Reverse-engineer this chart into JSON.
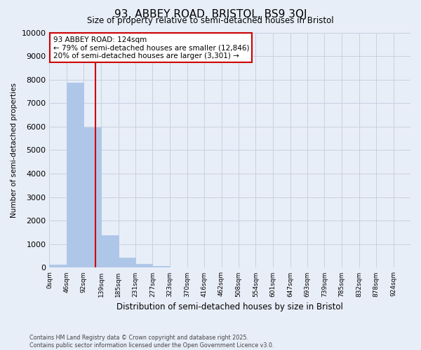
{
  "title": "93, ABBEY ROAD, BRISTOL, BS9 3QJ",
  "subtitle": "Size of property relative to semi-detached houses in Bristol",
  "xlabel": "Distribution of semi-detached houses by size in Bristol",
  "ylabel": "Number of semi-detached properties",
  "bin_labels": [
    "0sqm",
    "46sqm",
    "92sqm",
    "139sqm",
    "185sqm",
    "231sqm",
    "277sqm",
    "323sqm",
    "370sqm",
    "416sqm",
    "462sqm",
    "508sqm",
    "554sqm",
    "601sqm",
    "647sqm",
    "693sqm",
    "739sqm",
    "785sqm",
    "832sqm",
    "878sqm",
    "924sqm"
  ],
  "bin_edges": [
    0,
    46,
    92,
    139,
    185,
    231,
    277,
    323,
    370,
    416,
    462,
    508,
    554,
    601,
    647,
    693,
    739,
    785,
    832,
    878,
    924
  ],
  "bar_heights": [
    130,
    7880,
    5980,
    1380,
    430,
    160,
    70,
    20,
    0,
    0,
    0,
    0,
    0,
    0,
    0,
    0,
    0,
    0,
    0,
    0
  ],
  "bar_color": "#aec6e8",
  "bar_edgecolor": "#aec6e8",
  "property_size": 124,
  "vline_color": "#cc0000",
  "annotation_title": "93 ABBEY ROAD: 124sqm",
  "annotation_line1": "← 79% of semi-detached houses are smaller (12,846)",
  "annotation_line2": "20% of semi-detached houses are larger (3,301) →",
  "annotation_box_edgecolor": "#cc0000",
  "annotation_box_facecolor": "#ffffff",
  "ylim": [
    0,
    10000
  ],
  "yticks": [
    0,
    1000,
    2000,
    3000,
    4000,
    5000,
    6000,
    7000,
    8000,
    9000,
    10000
  ],
  "grid_color": "#c8d0e0",
  "bg_color": "#e8eef8",
  "footer1": "Contains HM Land Registry data © Crown copyright and database right 2025.",
  "footer2": "Contains public sector information licensed under the Open Government Licence v3.0."
}
